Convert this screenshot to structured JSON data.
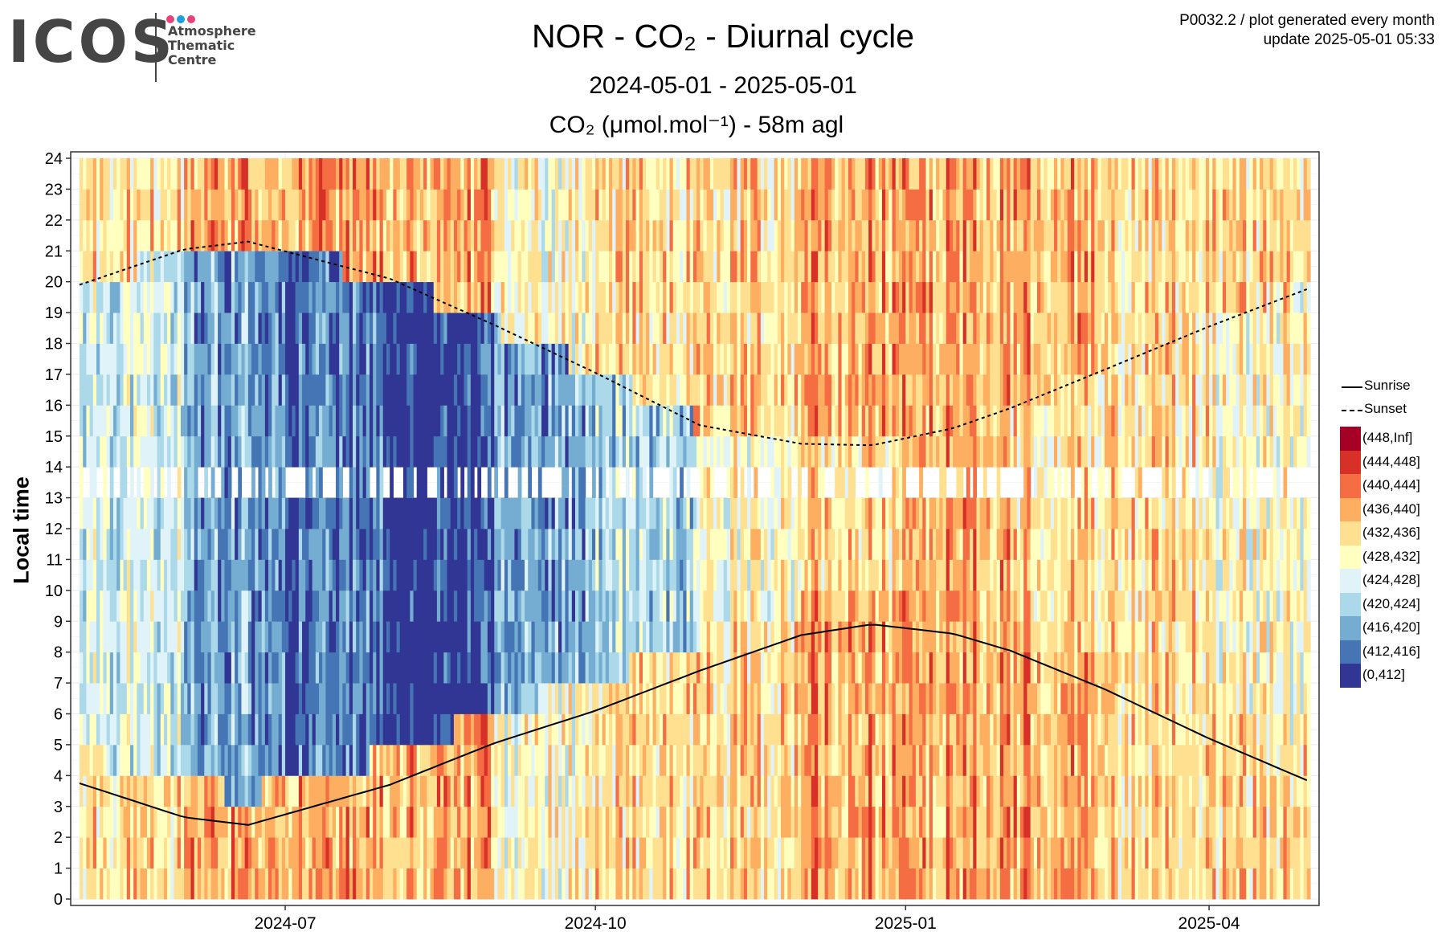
{
  "logo": {
    "word": "ICOS",
    "sub": [
      "Atmosphere",
      "Thematic",
      "Centre"
    ],
    "dot_colors": [
      "#e8427a",
      "#1e9de0",
      "#e8427a"
    ]
  },
  "header": {
    "code_line": "P0032.2 / plot generated every month",
    "update_line": "update  2025-05-01 05:33"
  },
  "chart_data": {
    "type": "heatmap",
    "title": "NOR - CO₂ - Diurnal cycle",
    "subtitle": "2024-05-01 - 2025-05-01",
    "quantity_label": "CO₂ (μmol.mol⁻¹) - 58m agl",
    "xlabel": "",
    "ylabel": "Local time",
    "x_range": [
      "2024-05-01",
      "2025-05-01"
    ],
    "x_ticks": [
      "2024-07",
      "2024-10",
      "2025-01",
      "2025-04"
    ],
    "x_tick_dates": [
      "2024-07-01",
      "2024-10-01",
      "2025-01-01",
      "2025-04-01"
    ],
    "y_range": [
      0,
      24
    ],
    "y_ticks": [
      0,
      1,
      2,
      3,
      4,
      5,
      6,
      7,
      8,
      9,
      10,
      11,
      12,
      13,
      14,
      15,
      16,
      17,
      18,
      19,
      20,
      21,
      22,
      23,
      24
    ],
    "grid": true,
    "legend_position": "right",
    "bins": [
      {
        "label": "(448,Inf]",
        "color": "#a50026"
      },
      {
        "label": "(444,448]",
        "color": "#d73027"
      },
      {
        "label": "(440,444]",
        "color": "#f46d43"
      },
      {
        "label": "(436,440]",
        "color": "#fdae61"
      },
      {
        "label": "(432,436]",
        "color": "#fee090"
      },
      {
        "label": "(428,432]",
        "color": "#ffffbf"
      },
      {
        "label": "(424,428]",
        "color": "#e0f3f8"
      },
      {
        "label": "(420,424]",
        "color": "#abd9e9"
      },
      {
        "label": "(416,420]",
        "color": "#74add1"
      },
      {
        "label": "(412,416]",
        "color": "#4575b4"
      },
      {
        "label": "(0,412]",
        "color": "#313695"
      }
    ],
    "typical_bin_by_month": [
      {
        "month": "2024-05",
        "night": "(432,436]",
        "day": "(424,428]"
      },
      {
        "month": "2024-06",
        "night": "(436,440]",
        "day": "(416,420]"
      },
      {
        "month": "2024-07",
        "night": "(436,440]",
        "day": "(412,416]"
      },
      {
        "month": "2024-08",
        "night": "(436,440]",
        "day": "(0,412]"
      },
      {
        "month": "2024-09",
        "night": "(428,432]",
        "day": "(416,420]"
      },
      {
        "month": "2024-10",
        "night": "(432,436]",
        "day": "(420,424]"
      },
      {
        "month": "2024-11",
        "night": "(432,436]",
        "day": "(428,432]"
      },
      {
        "month": "2024-12",
        "night": "(436,440]",
        "day": "(432,436]"
      },
      {
        "month": "2025-01",
        "night": "(436,440]",
        "day": "(436,440]"
      },
      {
        "month": "2025-02",
        "night": "(436,440]",
        "day": "(432,436]"
      },
      {
        "month": "2025-03",
        "night": "(432,436]",
        "day": "(432,436]"
      },
      {
        "month": "2025-04",
        "night": "(432,436]",
        "day": "(428,432]"
      }
    ],
    "missing_hours": [
      13
    ],
    "series": [
      {
        "name": "Sunrise",
        "line_style": "solid",
        "x": [
          "2024-05-01",
          "2024-06-01",
          "2024-06-20",
          "2024-08-01",
          "2024-09-01",
          "2024-10-01",
          "2024-11-01",
          "2024-12-01",
          "2024-12-22",
          "2025-01-15",
          "2025-02-01",
          "2025-03-01",
          "2025-04-01",
          "2025-05-01"
        ],
        "y": [
          3.75,
          2.65,
          2.4,
          3.7,
          5.05,
          6.1,
          7.4,
          8.55,
          8.9,
          8.6,
          8.05,
          6.8,
          5.2,
          3.8
        ]
      },
      {
        "name": "Sunset",
        "line_style": "dashed",
        "x": [
          "2024-05-01",
          "2024-06-01",
          "2024-06-20",
          "2024-08-01",
          "2024-09-01",
          "2024-10-01",
          "2024-11-01",
          "2024-12-01",
          "2024-12-22",
          "2025-01-15",
          "2025-02-01",
          "2025-03-01",
          "2025-04-01",
          "2025-05-01"
        ],
        "y": [
          19.9,
          21.05,
          21.3,
          20.1,
          18.6,
          17.05,
          15.35,
          14.75,
          14.7,
          15.25,
          15.9,
          17.15,
          18.55,
          19.8
        ]
      }
    ]
  }
}
